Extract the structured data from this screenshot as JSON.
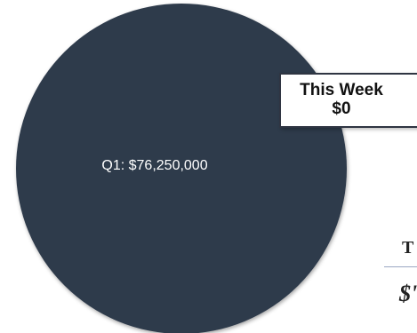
{
  "chart_data": {
    "type": "pie",
    "slices": [
      {
        "label": "Q1",
        "value": 76250000,
        "display": "Q1: $76,250,000",
        "color": "#2e3a4b"
      }
    ]
  },
  "callout": {
    "line1": "This Week",
    "line2": "$0"
  },
  "side_panel": {
    "title_fragment": "T",
    "value_fragment": "$'"
  },
  "colors": {
    "slice": "#2e3a4b",
    "slice_label": "#ffffff",
    "background": "#ffffff"
  }
}
